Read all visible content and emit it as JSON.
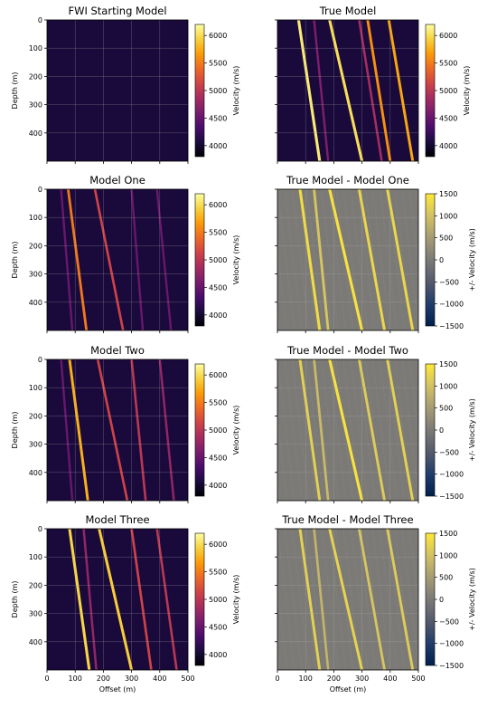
{
  "colors": {
    "inferno": [
      "#000004",
      "#1b0c41",
      "#4a0c6b",
      "#781c6d",
      "#a52c60",
      "#cf4446",
      "#ed6925",
      "#fb9b06",
      "#f7d13d",
      "#fcffa4"
    ],
    "cividis": [
      "#00204c",
      "#213d6b",
      "#555b6c",
      "#7b7a77",
      "#a59c74",
      "#d3c164",
      "#fee838"
    ],
    "background_velocity": "#1a0a3c",
    "difference_gray": "#7b7a77"
  },
  "chart_data": [
    {
      "type": "heatmap",
      "id": "fwi-start",
      "title": "FWI Starting Model",
      "xlabel": "",
      "ylabel": "Depth (m)",
      "xlim": [
        0,
        500
      ],
      "ylim": [
        500,
        0
      ],
      "yticks": [
        "0",
        "100",
        "200",
        "300",
        "400"
      ],
      "xticks": [],
      "colorbar": {
        "label": "Velocity (m/s)",
        "colormap": "inferno",
        "range": [
          3800,
          6200
        ],
        "ticks": [
          "4000",
          "4500",
          "5000",
          "5500",
          "6000"
        ]
      },
      "features": [],
      "grid": true
    },
    {
      "type": "heatmap",
      "id": "true-model",
      "title": "True Model",
      "xlabel": "",
      "ylabel": "",
      "xlim": [
        0,
        500
      ],
      "ylim": [
        500,
        0
      ],
      "yticks": [],
      "xticks": [],
      "colorbar": {
        "label": "Velocity (m/s)",
        "colormap": "inferno",
        "range": [
          3800,
          6200
        ],
        "ticks": [
          "4000",
          "4500",
          "5000",
          "5500",
          "6000"
        ]
      },
      "features": [
        {
          "x_top": 75,
          "x_bottom": 150,
          "level": 0.95
        },
        {
          "x_top": 185,
          "x_bottom": 300,
          "level": 0.92
        },
        {
          "x_top": 290,
          "x_bottom": 370,
          "level": 0.45
        },
        {
          "x_top": 320,
          "x_bottom": 400,
          "level": 0.75
        },
        {
          "x_top": 395,
          "x_bottom": 480,
          "level": 0.8
        },
        {
          "x_top": 130,
          "x_bottom": 180,
          "level": 0.35
        }
      ],
      "grid": true
    },
    {
      "type": "heatmap",
      "id": "model-one",
      "title": "Model One",
      "xlabel": "",
      "ylabel": "Depth (m)",
      "xlim": [
        0,
        500
      ],
      "ylim": [
        500,
        0
      ],
      "yticks": [
        "0",
        "100",
        "200",
        "300",
        "400"
      ],
      "xticks": [],
      "colorbar": {
        "label": "Velocity (m/s)",
        "colormap": "inferno",
        "range": [
          3800,
          6200
        ],
        "ticks": [
          "4000",
          "4500",
          "5000",
          "5500",
          "6000"
        ]
      },
      "features": [
        {
          "x_top": 75,
          "x_bottom": 140,
          "level": 0.7
        },
        {
          "x_top": 170,
          "x_bottom": 270,
          "level": 0.55
        },
        {
          "x_top": 300,
          "x_bottom": 340,
          "level": 0.3
        },
        {
          "x_top": 390,
          "x_bottom": 440,
          "level": 0.3
        },
        {
          "x_top": 50,
          "x_bottom": 90,
          "level": 0.3
        }
      ],
      "grid": true
    },
    {
      "type": "heatmap",
      "id": "diff-one",
      "title": "True Model - Model One",
      "xlabel": "",
      "ylabel": "",
      "xlim": [
        0,
        500
      ],
      "ylim": [
        500,
        0
      ],
      "yticks": [],
      "xticks": [],
      "colorbar": {
        "label": "+/- Velocity (m/s)",
        "colormap": "cividis",
        "range": [
          -1500,
          1500
        ],
        "ticks": [
          "1500",
          "1000",
          "500",
          "0",
          "−500",
          "−1000",
          "−1500"
        ]
      },
      "features": [
        {
          "x_top": 80,
          "x_bottom": 150,
          "level": 0.9
        },
        {
          "x_top": 185,
          "x_bottom": 300,
          "level": 0.95
        },
        {
          "x_top": 290,
          "x_bottom": 380,
          "level": 0.85
        },
        {
          "x_top": 390,
          "x_bottom": 480,
          "level": 0.85
        },
        {
          "x_top": 130,
          "x_bottom": 180,
          "level": 0.7
        }
      ],
      "grid": true
    },
    {
      "type": "heatmap",
      "id": "model-two",
      "title": "Model Two",
      "xlabel": "",
      "ylabel": "Depth (m)",
      "xlim": [
        0,
        500
      ],
      "ylim": [
        500,
        0
      ],
      "yticks": [
        "0",
        "100",
        "200",
        "300",
        "400"
      ],
      "xticks": [],
      "colorbar": {
        "label": "Velocity (m/s)",
        "colormap": "inferno",
        "range": [
          3800,
          6200
        ],
        "ticks": [
          "4000",
          "4500",
          "5000",
          "5500",
          "6000"
        ]
      },
      "features": [
        {
          "x_top": 80,
          "x_bottom": 145,
          "level": 0.82
        },
        {
          "x_top": 180,
          "x_bottom": 285,
          "level": 0.55
        },
        {
          "x_top": 300,
          "x_bottom": 350,
          "level": 0.5
        },
        {
          "x_top": 400,
          "x_bottom": 450,
          "level": 0.4
        },
        {
          "x_top": 50,
          "x_bottom": 90,
          "level": 0.3
        }
      ],
      "grid": true
    },
    {
      "type": "heatmap",
      "id": "diff-two",
      "title": "True Model - Model Two",
      "xlabel": "",
      "ylabel": "",
      "xlim": [
        0,
        500
      ],
      "ylim": [
        500,
        0
      ],
      "yticks": [],
      "xticks": [],
      "colorbar": {
        "label": "+/- Velocity (m/s)",
        "colormap": "cividis",
        "range": [
          -1500,
          1500
        ],
        "ticks": [
          "1500",
          "1000",
          "500",
          "0",
          "−500",
          "−1000",
          "−1500"
        ]
      },
      "features": [
        {
          "x_top": 80,
          "x_bottom": 150,
          "level": 0.8
        },
        {
          "x_top": 185,
          "x_bottom": 300,
          "level": 0.95
        },
        {
          "x_top": 290,
          "x_bottom": 380,
          "level": 0.75
        },
        {
          "x_top": 390,
          "x_bottom": 480,
          "level": 0.8
        },
        {
          "x_top": 130,
          "x_bottom": 180,
          "level": 0.6
        }
      ],
      "grid": true
    },
    {
      "type": "heatmap",
      "id": "model-three",
      "title": "Model Three",
      "xlabel": "Offset (m)",
      "ylabel": "Depth (m)",
      "xlim": [
        0,
        500
      ],
      "ylim": [
        500,
        0
      ],
      "yticks": [
        "0",
        "100",
        "200",
        "300",
        "400"
      ],
      "xticks": [
        "0",
        "100",
        "200",
        "300",
        "400",
        "500"
      ],
      "colorbar": {
        "label": "Velocity (m/s)",
        "colormap": "inferno",
        "range": [
          3800,
          6200
        ],
        "ticks": [
          "4000",
          "4500",
          "5000",
          "5500",
          "6000"
        ]
      },
      "features": [
        {
          "x_top": 80,
          "x_bottom": 150,
          "level": 0.9
        },
        {
          "x_top": 185,
          "x_bottom": 300,
          "level": 0.88
        },
        {
          "x_top": 300,
          "x_bottom": 370,
          "level": 0.55
        },
        {
          "x_top": 390,
          "x_bottom": 460,
          "level": 0.5
        },
        {
          "x_top": 130,
          "x_bottom": 175,
          "level": 0.4
        }
      ],
      "grid": true
    },
    {
      "type": "heatmap",
      "id": "diff-three",
      "title": "True Model - Model Three",
      "xlabel": "Offset (m)",
      "ylabel": "",
      "xlim": [
        0,
        500
      ],
      "ylim": [
        500,
        0
      ],
      "yticks": [],
      "xticks": [
        "0",
        "100",
        "200",
        "300",
        "400",
        "500"
      ],
      "colorbar": {
        "label": "+/- Velocity (m/s)",
        "colormap": "cividis",
        "range": [
          -1500,
          1500
        ],
        "ticks": [
          "1500",
          "1000",
          "500",
          "0",
          "−500",
          "−1000",
          "−1500"
        ]
      },
      "features": [
        {
          "x_top": 80,
          "x_bottom": 150,
          "level": 0.8
        },
        {
          "x_top": 185,
          "x_bottom": 300,
          "level": 0.82
        },
        {
          "x_top": 290,
          "x_bottom": 380,
          "level": 0.7
        },
        {
          "x_top": 390,
          "x_bottom": 480,
          "level": 0.75
        },
        {
          "x_top": 130,
          "x_bottom": 180,
          "level": 0.55
        }
      ],
      "grid": true
    }
  ]
}
